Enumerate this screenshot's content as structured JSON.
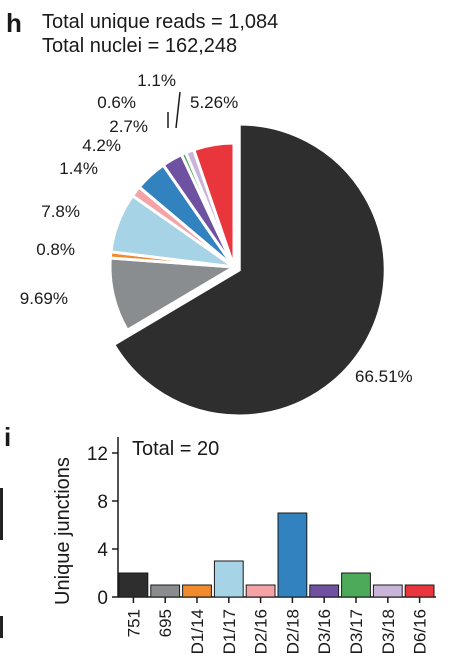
{
  "panel_h": {
    "letter": "h",
    "header_lines": [
      "Total unique reads = 1,084",
      "Total nuclei = 162,248"
    ]
  },
  "panel_i": {
    "letter": "i"
  },
  "chart_data": [
    {
      "type": "pie",
      "title": "",
      "slices": [
        {
          "value": 66.51,
          "label": "66.51%",
          "color": "#2e2e2e"
        },
        {
          "value": 9.69,
          "label": "9.69%",
          "color": "#8a8d8f"
        },
        {
          "value": 0.8,
          "label": "0.8%",
          "color": "#f08a2c"
        },
        {
          "value": 7.8,
          "label": "7.8%",
          "color": "#a7d3e6"
        },
        {
          "value": 1.4,
          "label": "1.4%",
          "color": "#f5a3a6"
        },
        {
          "value": 4.2,
          "label": "4.2%",
          "color": "#3282c0"
        },
        {
          "value": 2.7,
          "label": "2.7%",
          "color": "#6f51a1"
        },
        {
          "value": 0.6,
          "label": "0.6%",
          "color": "#4daa5a"
        },
        {
          "value": 1.1,
          "label": "1.1%",
          "color": "#c9b5da"
        },
        {
          "value": 5.26,
          "label": "5.26%",
          "color": "#e8363c"
        }
      ],
      "exploded_slice": "66.51%"
    },
    {
      "type": "bar",
      "annotation": "Total = 20",
      "ylabel": "Unique junctions",
      "xlabel": "",
      "ylim": [
        0,
        12
      ],
      "yticks": [
        0,
        4,
        8,
        12
      ],
      "categories": [
        "751",
        "695",
        "D1/14",
        "D1/17",
        "D2/16",
        "D2/18",
        "D3/16",
        "D3/17",
        "D3/18",
        "D6/16"
      ],
      "values": [
        2,
        1,
        1,
        3,
        1,
        7,
        1,
        2,
        1,
        1
      ],
      "colors": [
        "#2e2e2e",
        "#8a8d8f",
        "#f08a2c",
        "#a7d3e6",
        "#f5a3a6",
        "#3282c0",
        "#6f51a1",
        "#4daa5a",
        "#c9b5da",
        "#e8363c"
      ]
    }
  ]
}
